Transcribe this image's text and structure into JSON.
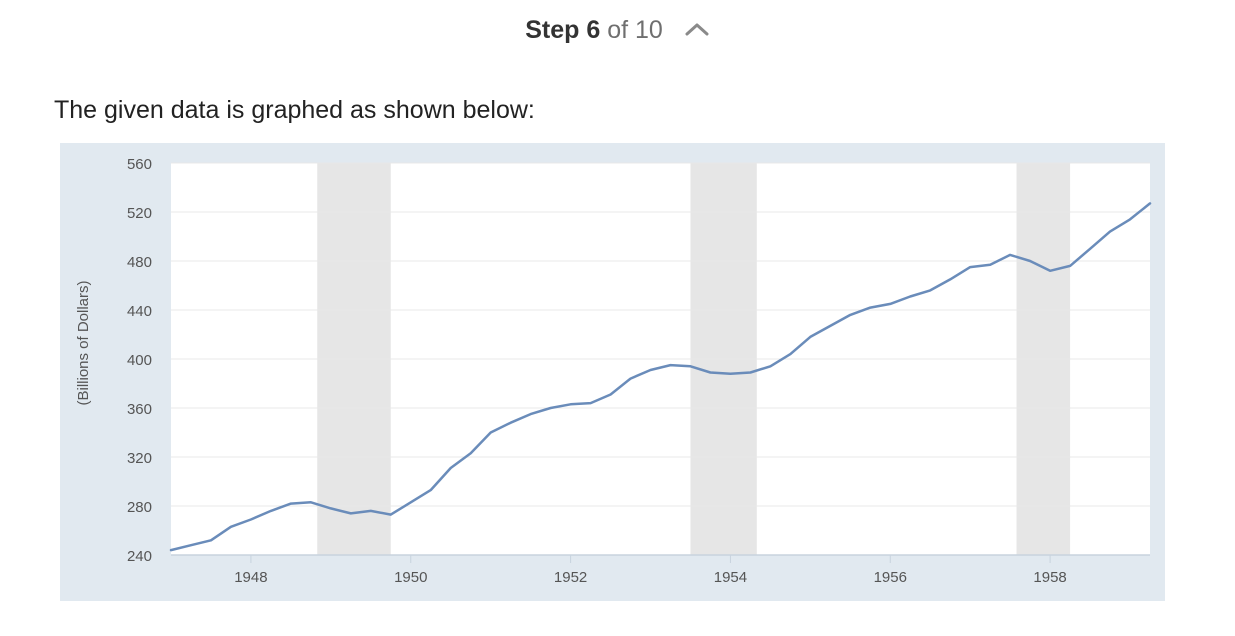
{
  "step": {
    "label": "Step",
    "current": "6",
    "of_text": "of 10",
    "toggle_icon": "chevron-up-icon"
  },
  "intro_text": "The given data is graphed as shown below:",
  "chart_data": {
    "type": "line",
    "title": "",
    "xlabel": "",
    "ylabel": "(Billions of Dollars)",
    "ylim": [
      240,
      560
    ],
    "xlim": [
      1947.0,
      1959.25
    ],
    "yticks": [
      240,
      280,
      320,
      360,
      400,
      440,
      480,
      520,
      560
    ],
    "xticks": [
      1948,
      1950,
      1952,
      1954,
      1956,
      1958
    ],
    "grid": true,
    "legend": "none",
    "recessions": [
      [
        1948.83,
        1949.75
      ],
      [
        1953.5,
        1954.33
      ],
      [
        1957.58,
        1958.25
      ]
    ],
    "series": [
      {
        "color": "#6a8cba",
        "x": [
          1947.0,
          1947.25,
          1947.5,
          1947.75,
          1948.0,
          1948.25,
          1948.5,
          1948.75,
          1949.0,
          1949.25,
          1949.5,
          1949.75,
          1950.0,
          1950.25,
          1950.5,
          1950.75,
          1951.0,
          1951.25,
          1951.5,
          1951.75,
          1952.0,
          1952.25,
          1952.5,
          1952.75,
          1953.0,
          1953.25,
          1953.5,
          1953.75,
          1954.0,
          1954.25,
          1954.5,
          1954.75,
          1955.0,
          1955.25,
          1955.5,
          1955.75,
          1956.0,
          1956.25,
          1956.5,
          1956.75,
          1957.0,
          1957.25,
          1957.5,
          1957.75,
          1958.0,
          1958.25,
          1958.5,
          1958.75,
          1959.0,
          1959.25
        ],
        "values": [
          244,
          248,
          252,
          263,
          269,
          276,
          282,
          283,
          278,
          274,
          276,
          273,
          283,
          293,
          311,
          323,
          340,
          348,
          355,
          360,
          363,
          364,
          371,
          384,
          391,
          395,
          394,
          389,
          388,
          389,
          394,
          404,
          418,
          427,
          436,
          442,
          445,
          451,
          456,
          465,
          475,
          477,
          485,
          480,
          472,
          476,
          490,
          504,
          514,
          527
        ]
      }
    ]
  }
}
